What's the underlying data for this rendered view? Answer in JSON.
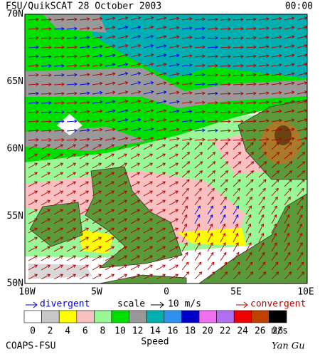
{
  "header": {
    "title": "FSU/QuikSCAT  28 October 2003",
    "time": "00:00"
  },
  "map": {
    "lat_labels": [
      "70N",
      "65N",
      "60N",
      "55N",
      "50N"
    ],
    "lon_labels": [
      "10W",
      "5W",
      "0",
      "5E",
      "10E"
    ]
  },
  "legend": {
    "divergent": "divergent",
    "scale": "scale",
    "scale_value": "10 m/s",
    "convergent": "convergent"
  },
  "colorbar": {
    "values": [
      0,
      2,
      4,
      6,
      8,
      10,
      12,
      14,
      16,
      18,
      20,
      22,
      24,
      26,
      28
    ],
    "colors": [
      "#ffffff",
      "#c8c8c8",
      "#ffff00",
      "#f8c0c0",
      "#98f898",
      "#00e000",
      "#999999",
      "#00b0b0",
      "#3090f0",
      "#0000c8",
      "#f070f0",
      "#b070f0",
      "#f00000",
      "#c04000",
      "#000000"
    ],
    "unit": "m/s",
    "label": "Speed"
  },
  "footer": {
    "left": "COAPS-FSU",
    "right": "Yan Gu"
  }
}
